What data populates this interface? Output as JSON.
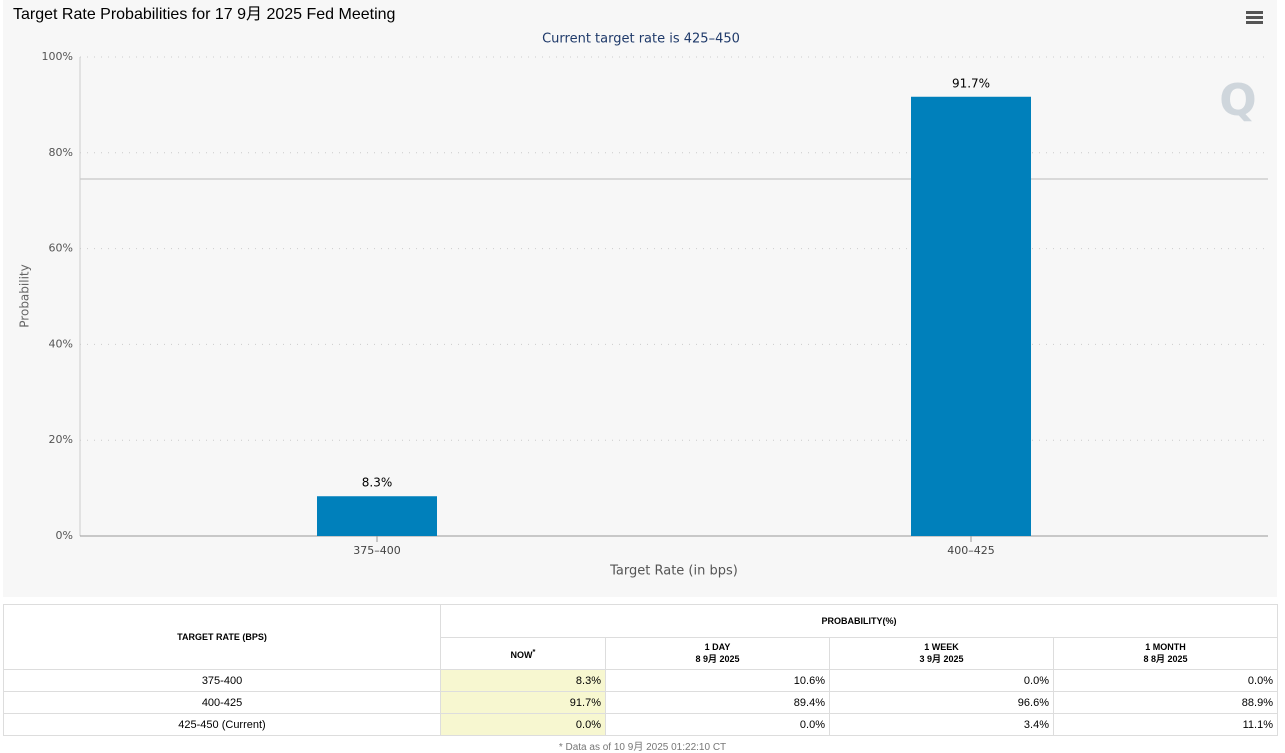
{
  "chart_data": {
    "type": "bar",
    "title": "Target Rate Probabilities for 17 9月 2025 Fed Meeting",
    "subtitle": "Current target rate is 425–450",
    "x_label": "Target Rate (in bps)",
    "y_label": "Probability",
    "categories": [
      "375–400",
      "400–425"
    ],
    "values": [
      8.3,
      91.7
    ],
    "value_labels": [
      "8.3%",
      "91.7%"
    ],
    "color": "#0080bb",
    "ylim": [
      0,
      100
    ],
    "yticks": [
      {
        "value": 0,
        "label": "0%"
      },
      {
        "value": 20,
        "label": "20%"
      },
      {
        "value": 40,
        "label": "40%"
      },
      {
        "value": 60,
        "label": "60%"
      },
      {
        "value": 80,
        "label": "80%"
      },
      {
        "value": 100,
        "label": "100%"
      }
    ],
    "grid": true
  },
  "table": {
    "rate_header": "TARGET RATE (BPS)",
    "prob_header": "PROBABILITY(%)",
    "columns": [
      {
        "label": "NOW",
        "note": "*"
      },
      {
        "label": "1 DAY",
        "date": "8 9月 2025"
      },
      {
        "label": "1 WEEK",
        "date": "3 9月 2025"
      },
      {
        "label": "1 MONTH",
        "date": "8 8月 2025"
      }
    ],
    "rows": [
      [
        "375-400",
        "8.3%",
        "10.6%",
        "0.0%",
        "0.0%"
      ],
      [
        "400-425",
        "91.7%",
        "89.4%",
        "96.6%",
        "88.9%"
      ],
      [
        "425-450 (Current)",
        "0.0%",
        "0.0%",
        "3.4%",
        "11.1%"
      ]
    ],
    "footnote": "* Data as of 10 9月 2025 01:22:10 CT"
  }
}
